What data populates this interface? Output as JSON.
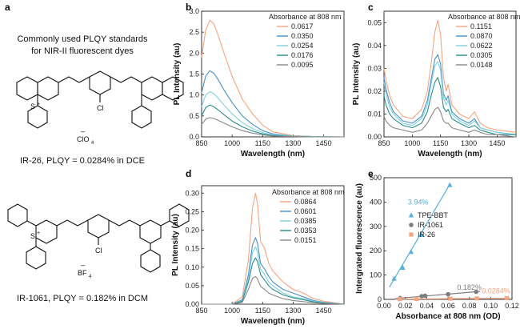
{
  "panel_a": {
    "letter": "a",
    "heading_line1": "Commonly used PLQY standards",
    "heading_line2": "for NIR-II fluorescent dyes",
    "mol1": {
      "s_label": "S",
      "s_charge": "+",
      "cl_label": "Cl",
      "anion_minus": "–",
      "anion": "ClO",
      "anion_sub": "4",
      "caption": "IR-26, PLQY = 0.0284% in DCE"
    },
    "mol2": {
      "s_label": "S",
      "s_charge": "+",
      "cl_label": "Cl",
      "anion_minus": "–",
      "anion": "BF",
      "anion_sub": "4",
      "caption": "IR-1061, PLQY = 0.182% in DCM"
    }
  },
  "colors": {
    "c1": "#f4a582",
    "c2": "#4a90c8",
    "c3": "#7fd0dc",
    "c4": "#2a8d8a",
    "c5": "#888888",
    "tpe": "#5aaed8",
    "ir1061": "#7d7d7d",
    "ir26": "#f4a582"
  },
  "chart_data": [
    {
      "id": "b",
      "letter": "b",
      "type": "line",
      "xlabel": "Wavelength (nm)",
      "ylabel": "PL Intensity (au)",
      "xlim": [
        850,
        1550
      ],
      "ylim": [
        0,
        3.0
      ],
      "xticks": [
        "850",
        "1000",
        "1150",
        "1300",
        "1450"
      ],
      "xtick_values": [
        850,
        1000,
        1150,
        1300,
        1450
      ],
      "yticks": [
        "0.0",
        "0.5",
        "1.0",
        "1.5",
        "2.0",
        "2.5",
        "3.0"
      ],
      "ytick_values": [
        0,
        0.5,
        1.0,
        1.5,
        2.0,
        2.5,
        3.0
      ],
      "legend_title": "Absorbance at 808 nm",
      "legend_position": "top-right",
      "series": [
        {
          "name": "0.0617",
          "color": "#f4a582",
          "x": [
            850,
            870,
            890,
            910,
            930,
            960,
            1000,
            1050,
            1100,
            1150,
            1200,
            1300,
            1400,
            1550
          ],
          "y": [
            1.9,
            2.55,
            2.78,
            2.7,
            2.45,
            2.0,
            1.45,
            0.9,
            0.55,
            0.28,
            0.12,
            0.03,
            0.01,
            0.0
          ]
        },
        {
          "name": "0.0350",
          "color": "#4a90c8",
          "x": [
            850,
            870,
            890,
            910,
            930,
            960,
            1000,
            1050,
            1100,
            1150,
            1200,
            1300,
            1400,
            1550
          ],
          "y": [
            1.05,
            1.45,
            1.58,
            1.52,
            1.38,
            1.12,
            0.82,
            0.5,
            0.3,
            0.15,
            0.07,
            0.02,
            0.01,
            0.0
          ]
        },
        {
          "name": "0.0254",
          "color": "#7fd0dc",
          "x": [
            850,
            870,
            890,
            910,
            930,
            960,
            1000,
            1050,
            1100,
            1150,
            1200,
            1300,
            1400,
            1550
          ],
          "y": [
            0.72,
            1.0,
            1.08,
            1.03,
            0.93,
            0.76,
            0.55,
            0.34,
            0.2,
            0.1,
            0.05,
            0.02,
            0.01,
            0.0
          ]
        },
        {
          "name": "0.0176",
          "color": "#2a8d8a",
          "x": [
            850,
            870,
            890,
            910,
            930,
            960,
            1000,
            1050,
            1100,
            1150,
            1200,
            1300,
            1400,
            1550
          ],
          "y": [
            0.5,
            0.7,
            0.76,
            0.72,
            0.65,
            0.53,
            0.38,
            0.24,
            0.14,
            0.07,
            0.03,
            0.01,
            0.0,
            0.0
          ]
        },
        {
          "name": "0.0095",
          "color": "#888888",
          "x": [
            850,
            870,
            890,
            910,
            930,
            960,
            1000,
            1050,
            1100,
            1150,
            1200,
            1300,
            1400,
            1550
          ],
          "y": [
            0.3,
            0.42,
            0.46,
            0.44,
            0.4,
            0.33,
            0.24,
            0.15,
            0.09,
            0.05,
            0.02,
            0.01,
            0.0,
            0.0
          ]
        }
      ]
    },
    {
      "id": "c",
      "letter": "c",
      "type": "line",
      "xlabel": "Wavelength (nm)",
      "ylabel": "PL Intensity (au)",
      "xlim": [
        850,
        1550
      ],
      "ylim": [
        0,
        0.055
      ],
      "xticks": [
        "850",
        "1000",
        "1150",
        "1300",
        "1450"
      ],
      "xtick_values": [
        850,
        1000,
        1150,
        1300,
        1450
      ],
      "yticks": [
        "0.00",
        "0.01",
        "0.02",
        "0.03",
        "0.04",
        "0.05"
      ],
      "ytick_values": [
        0,
        0.01,
        0.02,
        0.03,
        0.04,
        0.05
      ],
      "legend_title": "Absorbance at 808 nm",
      "legend_position": "top-right",
      "series": [
        {
          "name": "0.1151",
          "color": "#f4a582",
          "x": [
            850,
            860,
            880,
            900,
            950,
            1000,
            1050,
            1080,
            1100,
            1120,
            1135,
            1150,
            1165,
            1180,
            1190,
            1210,
            1250,
            1300,
            1330,
            1360,
            1400,
            1450,
            1550
          ],
          "y": [
            0.03,
            0.025,
            0.018,
            0.014,
            0.009,
            0.008,
            0.012,
            0.02,
            0.032,
            0.046,
            0.051,
            0.045,
            0.026,
            0.02,
            0.023,
            0.014,
            0.01,
            0.008,
            0.011,
            0.006,
            0.004,
            0.003,
            0.002
          ]
        },
        {
          "name": "0.0870",
          "color": "#4a90c8",
          "x": [
            850,
            860,
            880,
            900,
            950,
            1000,
            1050,
            1080,
            1100,
            1120,
            1135,
            1150,
            1165,
            1180,
            1190,
            1210,
            1250,
            1300,
            1330,
            1360,
            1400,
            1450,
            1550
          ],
          "y": [
            0.026,
            0.021,
            0.015,
            0.011,
            0.007,
            0.006,
            0.009,
            0.016,
            0.025,
            0.034,
            0.036,
            0.032,
            0.019,
            0.016,
            0.018,
            0.011,
            0.008,
            0.006,
            0.008,
            0.004,
            0.003,
            0.002,
            0.001
          ]
        },
        {
          "name": "0.0622",
          "color": "#7fd0dc",
          "x": [
            850,
            860,
            880,
            900,
            950,
            1000,
            1050,
            1080,
            1100,
            1120,
            1135,
            1150,
            1165,
            1180,
            1190,
            1210,
            1250,
            1300,
            1330,
            1360,
            1400,
            1450,
            1550
          ],
          "y": [
            0.024,
            0.019,
            0.013,
            0.01,
            0.006,
            0.005,
            0.008,
            0.014,
            0.023,
            0.031,
            0.033,
            0.029,
            0.017,
            0.014,
            0.016,
            0.01,
            0.007,
            0.005,
            0.007,
            0.004,
            0.003,
            0.002,
            0.001
          ]
        },
        {
          "name": "0.0305",
          "color": "#2a8d8a",
          "x": [
            850,
            860,
            880,
            900,
            950,
            1000,
            1050,
            1080,
            1100,
            1120,
            1135,
            1150,
            1165,
            1180,
            1190,
            1210,
            1250,
            1300,
            1330,
            1360,
            1400,
            1450,
            1550
          ],
          "y": [
            0.018,
            0.014,
            0.01,
            0.008,
            0.005,
            0.004,
            0.006,
            0.011,
            0.018,
            0.024,
            0.026,
            0.022,
            0.013,
            0.011,
            0.012,
            0.008,
            0.006,
            0.004,
            0.005,
            0.003,
            0.002,
            0.001,
            0.001
          ]
        },
        {
          "name": "0.0148",
          "color": "#888888",
          "x": [
            850,
            860,
            880,
            900,
            950,
            1000,
            1050,
            1080,
            1100,
            1120,
            1135,
            1150,
            1165,
            1180,
            1190,
            1210,
            1250,
            1300,
            1330,
            1360,
            1400,
            1450,
            1550
          ],
          "y": [
            0.009,
            0.007,
            0.005,
            0.004,
            0.003,
            0.002,
            0.003,
            0.006,
            0.009,
            0.012,
            0.013,
            0.011,
            0.007,
            0.006,
            0.006,
            0.004,
            0.003,
            0.002,
            0.003,
            0.002,
            0.001,
            0.001,
            0.0
          ]
        }
      ]
    },
    {
      "id": "d",
      "letter": "d",
      "type": "line",
      "xlabel": "Wavelength (nm)",
      "ylabel": "PL Intensity (au)",
      "xlim": [
        850,
        1550
      ],
      "ylim": [
        0,
        0.32
      ],
      "xticks": [
        "850",
        "1000",
        "1150",
        "1300",
        "1450"
      ],
      "xtick_values": [
        850,
        1000,
        1150,
        1300,
        1450
      ],
      "yticks": [
        "0.00",
        "0.05",
        "0.10",
        "0.15",
        "0.20",
        "0.25",
        "0.30"
      ],
      "ytick_values": [
        0,
        0.05,
        0.1,
        0.15,
        0.2,
        0.25,
        0.3
      ],
      "legend_title": "Absorbance at 808 nm",
      "legend_position": "top-right",
      "series": [
        {
          "name": "0.0864",
          "color": "#f4a582",
          "x": [
            850,
            1000,
            1050,
            1080,
            1100,
            1115,
            1125,
            1140,
            1160,
            1180,
            1200,
            1250,
            1300,
            1350,
            1400,
            1450,
            1550
          ],
          "y": [
            0.0,
            0.0,
            0.02,
            0.12,
            0.26,
            0.3,
            0.27,
            0.17,
            0.15,
            0.11,
            0.09,
            0.06,
            0.04,
            0.03,
            0.015,
            0.008,
            0.0
          ]
        },
        {
          "name": "0.0601",
          "color": "#4a90c8",
          "x": [
            850,
            1000,
            1050,
            1080,
            1100,
            1115,
            1125,
            1140,
            1160,
            1180,
            1200,
            1250,
            1300,
            1350,
            1400,
            1450,
            1550
          ],
          "y": [
            0.0,
            0.0,
            0.012,
            0.08,
            0.16,
            0.18,
            0.165,
            0.11,
            0.095,
            0.075,
            0.06,
            0.04,
            0.03,
            0.02,
            0.01,
            0.005,
            0.0
          ]
        },
        {
          "name": "0.0385",
          "color": "#7fd0dc",
          "x": [
            850,
            1000,
            1050,
            1080,
            1100,
            1115,
            1125,
            1140,
            1160,
            1180,
            1200,
            1250,
            1300,
            1350,
            1400,
            1450,
            1550
          ],
          "y": [
            0.0,
            0.0,
            0.01,
            0.07,
            0.14,
            0.155,
            0.14,
            0.095,
            0.08,
            0.06,
            0.05,
            0.03,
            0.02,
            0.015,
            0.008,
            0.004,
            0.0
          ]
        },
        {
          "name": "0.0353",
          "color": "#2a8d8a",
          "x": [
            850,
            1000,
            1050,
            1080,
            1100,
            1115,
            1125,
            1140,
            1160,
            1180,
            1200,
            1250,
            1300,
            1350,
            1400,
            1450,
            1550
          ],
          "y": [
            0.0,
            0.0,
            0.008,
            0.06,
            0.11,
            0.125,
            0.115,
            0.08,
            0.065,
            0.05,
            0.04,
            0.025,
            0.017,
            0.012,
            0.006,
            0.003,
            0.0
          ]
        },
        {
          "name": "0.0151",
          "color": "#888888",
          "x": [
            850,
            1000,
            1050,
            1080,
            1100,
            1115,
            1125,
            1140,
            1160,
            1180,
            1200,
            1250,
            1300,
            1350,
            1400,
            1450,
            1550
          ],
          "y": [
            0.0,
            0.0,
            0.005,
            0.04,
            0.07,
            0.075,
            0.068,
            0.048,
            0.04,
            0.03,
            0.025,
            0.015,
            0.01,
            0.007,
            0.004,
            0.002,
            0.0
          ]
        }
      ]
    },
    {
      "id": "e",
      "letter": "e",
      "type": "scatter",
      "xlabel": "Absorbance at 808 nm (OD)",
      "ylabel": "Intergrated fluorescence (au)",
      "xlim": [
        0,
        0.12
      ],
      "ylim": [
        0,
        500
      ],
      "xticks": [
        "0.00",
        "0.02",
        "0.04",
        "0.06",
        "0.08",
        "0.10",
        "0.12"
      ],
      "xtick_values": [
        0,
        0.02,
        0.04,
        0.06,
        0.08,
        0.1,
        0.12
      ],
      "yticks": [
        "0",
        "100",
        "200",
        "300",
        "400",
        "500"
      ],
      "ytick_values": [
        0,
        100,
        200,
        300,
        400,
        500
      ],
      "legend_position": "middle-left",
      "series": [
        {
          "name": "TPE-BBT",
          "marker": "triangle",
          "color": "#5aaed8",
          "x": [
            0.0095,
            0.0176,
            0.0254,
            0.035,
            0.0617
          ],
          "y": [
            85,
            130,
            195,
            265,
            470
          ],
          "fit": [
            [
              0.005,
              50
            ],
            [
              0.062,
              475
            ]
          ],
          "annotation": "3.94%"
        },
        {
          "name": "IR-1061",
          "marker": "circle",
          "color": "#7d7d7d",
          "x": [
            0.0151,
            0.0353,
            0.0385,
            0.0601,
            0.0864
          ],
          "y": [
            5,
            13,
            15,
            21,
            31
          ],
          "fit": [
            [
              0.01,
              3
            ],
            [
              0.09,
              33
            ]
          ],
          "annotation": "0.182%"
        },
        {
          "name": "IR-26",
          "marker": "square",
          "color": "#f4a582",
          "x": [
            0.0148,
            0.0305,
            0.0622,
            0.087,
            0.1151
          ],
          "y": [
            1,
            2,
            3,
            4,
            5
          ],
          "fit": [
            [
              0.01,
              1
            ],
            [
              0.118,
              5
            ]
          ],
          "annotation": "0.0284%"
        }
      ]
    }
  ]
}
